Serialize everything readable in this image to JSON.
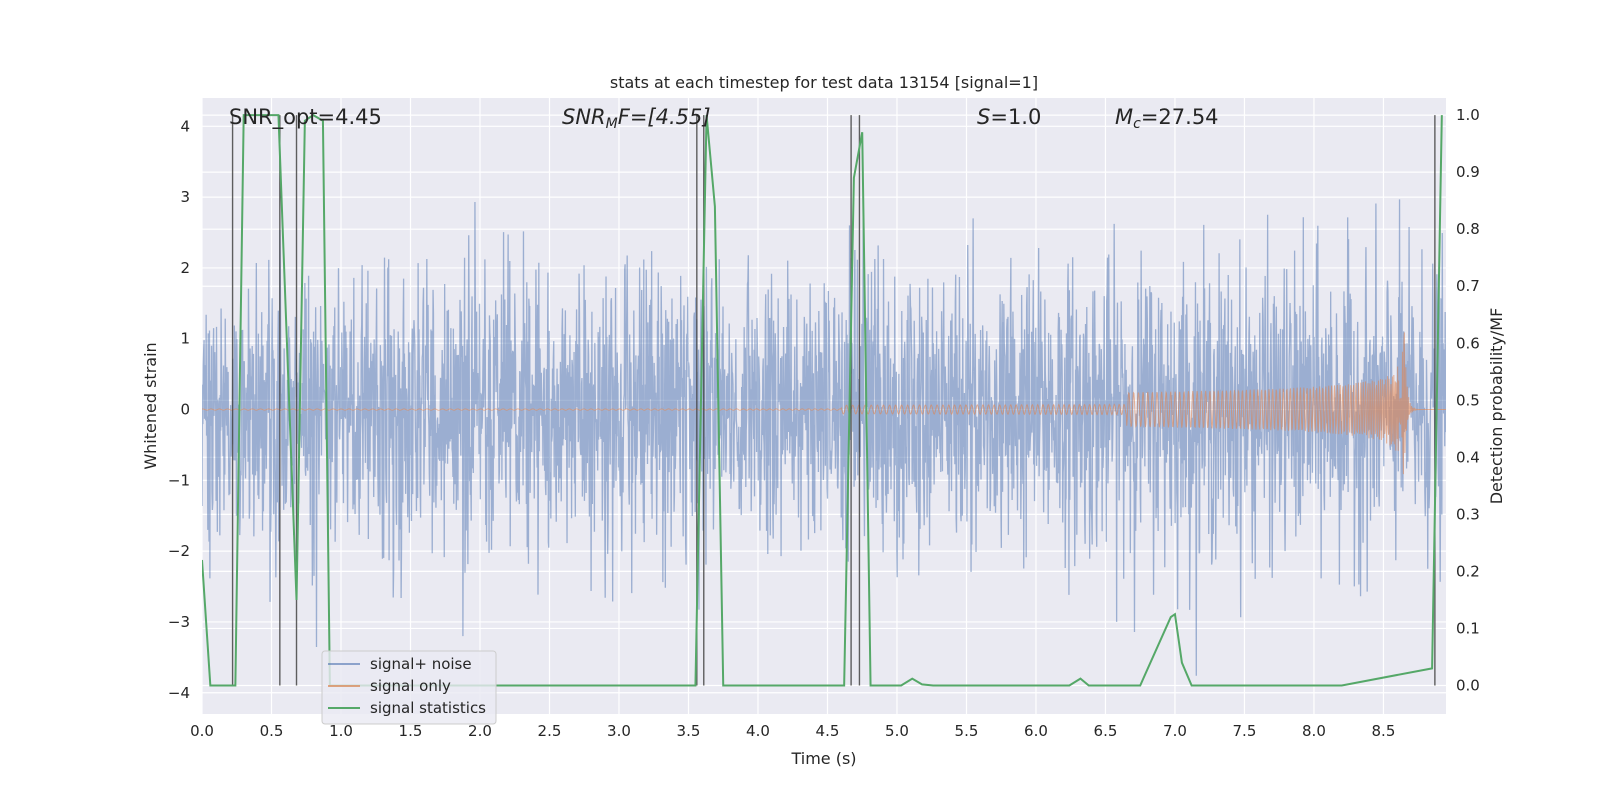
{
  "chart_data": {
    "type": "line",
    "title": "stats at each timestep for test data 13154 [signal=1]",
    "xlabel": "Time (s)",
    "ylabel_left": "Whitened strain",
    "ylabel_right": "Detection probability/MF",
    "xlim": [
      0.0,
      8.95
    ],
    "ylim_left": [
      -4.3,
      4.4
    ],
    "ylim_right": [
      -0.05,
      1.03
    ],
    "x_ticks": [
      "0.0",
      "0.5",
      "1.0",
      "1.5",
      "2.0",
      "2.5",
      "3.0",
      "3.5",
      "4.0",
      "4.5",
      "5.0",
      "5.5",
      "6.0",
      "6.5",
      "7.0",
      "7.5",
      "8.0",
      "8.5"
    ],
    "y_ticks_left": [
      "−4",
      "−3",
      "−2",
      "−1",
      "0",
      "1",
      "2",
      "3",
      "4"
    ],
    "y_ticks_right": [
      "0.0",
      "0.1",
      "0.2",
      "0.3",
      "0.4",
      "0.5",
      "0.6",
      "0.7",
      "0.8",
      "0.9",
      "1.0"
    ],
    "grid": true,
    "legend_position": "lower-left",
    "annotations": {
      "snr_opt": "SNR_opt=4.45",
      "snr_mf_prefix": "SNR",
      "snr_mf_sub": "M",
      "snr_mf_rest": "F=[4.55]",
      "s_symbol": "S",
      "s_value": "=1.0",
      "mc_symbol": "M",
      "mc_sub": "c",
      "mc_value": "=27.54"
    },
    "series": [
      {
        "name": "signal+ noise",
        "color": "#4c72b0",
        "alpha": 0.5,
        "style": "dense noise, |amplitude| mostly < 2.7, peaks up to ±4"
      },
      {
        "name": "signal only",
        "color": "#dd8452",
        "chirp": {
          "t_merge": 8.65,
          "peak_amplitude": 1.15,
          "t_start": 4.6
        }
      },
      {
        "name": "signal statistics",
        "color": "#55a868",
        "axis": "right",
        "x": [
          0.0,
          0.06,
          0.24,
          0.3,
          0.55,
          0.68,
          0.74,
          0.8,
          0.87,
          0.92,
          0.95,
          3.55,
          3.63,
          3.69,
          3.75,
          4.62,
          4.69,
          4.75,
          4.81,
          5.03,
          5.11,
          5.18,
          5.26,
          6.24,
          6.32,
          6.38,
          6.75,
          6.97,
          7.0,
          7.05,
          7.12,
          8.2,
          8.85,
          8.92
        ],
        "y": [
          0.22,
          0.0,
          0.0,
          1.0,
          1.0,
          0.15,
          0.99,
          1.0,
          0.99,
          0.0,
          0.0,
          0.0,
          1.0,
          0.84,
          0.0,
          0.0,
          0.89,
          0.97,
          0.0,
          0.0,
          0.012,
          0.002,
          0.0,
          0.0,
          0.012,
          0.0,
          0.0,
          0.12,
          0.125,
          0.04,
          0.0,
          0.0,
          0.03,
          1.0
        ]
      }
    ],
    "vertical_markers": [
      0.22,
      0.56,
      0.68,
      3.56,
      3.61,
      4.67,
      4.73,
      8.87
    ]
  }
}
